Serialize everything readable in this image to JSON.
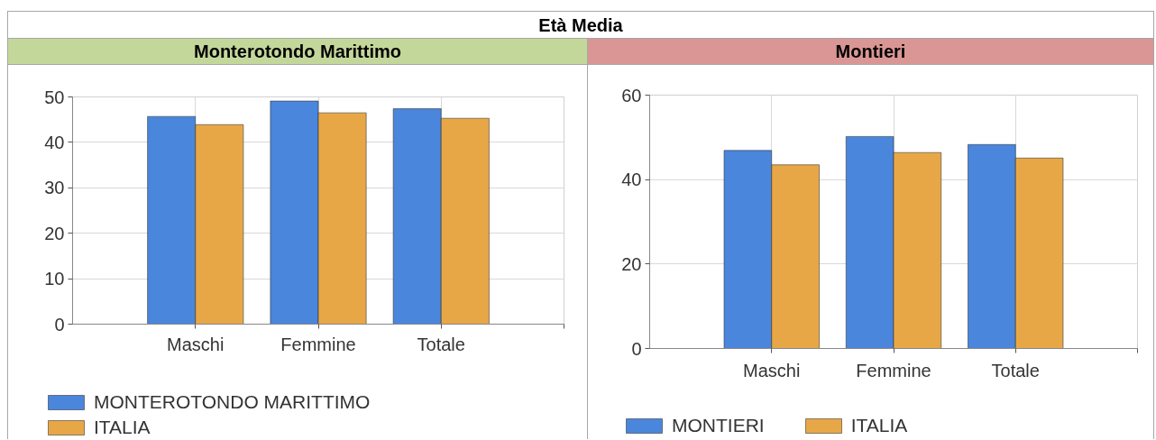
{
  "chart_data": [
    {
      "type": "bar",
      "title": "Età Media",
      "subtitle": "Monterotondo Marittimo",
      "categories": [
        "Maschi",
        "Femmine",
        "Totale"
      ],
      "series": [
        {
          "name": "MONTEROTONDO MARITTIMO",
          "color": "#4a86dc",
          "values": [
            45.7,
            49.1,
            47.4
          ]
        },
        {
          "name": "ITALIA",
          "color": "#e8a747",
          "values": [
            43.9,
            46.5,
            45.3
          ]
        }
      ],
      "ylim": [
        0,
        50
      ],
      "yticks": [
        0,
        10,
        20,
        30,
        40,
        50
      ],
      "grid": true,
      "legend": "bottom"
    },
    {
      "type": "bar",
      "subtitle": "Montieri",
      "categories": [
        "Maschi",
        "Femmine",
        "Totale"
      ],
      "series": [
        {
          "name": "MONTIERI",
          "color": "#4a86dc",
          "values": [
            46.9,
            50.2,
            48.3
          ]
        },
        {
          "name": "ITALIA",
          "color": "#e8a747",
          "values": [
            43.5,
            46.4,
            45.1
          ]
        }
      ],
      "ylim": [
        0,
        60
      ],
      "yticks": [
        0,
        20,
        40,
        60
      ],
      "grid": true,
      "legend": "bottom"
    }
  ]
}
